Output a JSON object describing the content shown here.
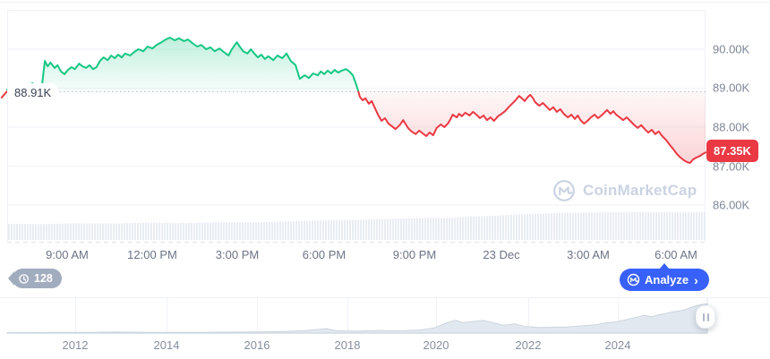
{
  "watermark": {
    "text": "CoinMarketCap"
  },
  "history_badge": {
    "count": "128"
  },
  "analyze_button": {
    "label": "Analyze",
    "chevron": "›",
    "color": "#3861fb"
  },
  "colors": {
    "up_green": "#16c784",
    "down_red": "#ea3943",
    "badge_red": "#ea3943",
    "analyze_blue": "#3861fb",
    "grid": "#eff2f5",
    "axis_text": "#7e8798",
    "navigator_fill": "#e2e8ef"
  },
  "chart_data": {
    "type": "line",
    "title": "",
    "open_price_k": 88.91,
    "last_price_k": 87.35,
    "open_price_label": "88.91K",
    "last_price_label": "87.35K",
    "y_axis": {
      "tick_labels": [
        "90.00K",
        "89.00K",
        "88.00K",
        "87.00K",
        "86.00K"
      ],
      "tick_values_k": [
        90,
        89,
        88,
        87,
        86
      ],
      "range_top_k": 91,
      "grid": "horizontal"
    },
    "x_axis": {
      "tick_labels": [
        "9:00 AM",
        "12:00 PM",
        "3:00 PM",
        "6:00 PM",
        "9:00 PM",
        "23 Dec",
        "3:00 AM",
        "6:00 AM"
      ]
    },
    "series": [
      {
        "name": "pre-open-tick",
        "color": "#ea3943",
        "area": "none",
        "points": [
          [
            -0.008,
            88.76
          ],
          [
            0.0,
            88.92
          ]
        ]
      },
      {
        "name": "price-above-open",
        "color": "#16c784",
        "area": "above",
        "points": [
          [
            0.0,
            88.97
          ],
          [
            0.01,
            88.94
          ],
          [
            0.018,
            89.01
          ],
          [
            0.028,
            88.97
          ],
          [
            0.036,
            89.13
          ],
          [
            0.041,
            89.03
          ],
          [
            0.046,
            88.99
          ],
          [
            0.05,
            89.08
          ],
          [
            0.054,
            89.7
          ],
          [
            0.058,
            89.56
          ],
          [
            0.062,
            89.66
          ],
          [
            0.068,
            89.52
          ],
          [
            0.072,
            89.59
          ],
          [
            0.077,
            89.43
          ],
          [
            0.082,
            89.36
          ],
          [
            0.087,
            89.47
          ],
          [
            0.092,
            89.54
          ],
          [
            0.097,
            89.49
          ],
          [
            0.103,
            89.63
          ],
          [
            0.108,
            89.56
          ],
          [
            0.113,
            89.52
          ],
          [
            0.118,
            89.59
          ],
          [
            0.123,
            89.49
          ],
          [
            0.128,
            89.54
          ],
          [
            0.133,
            89.7
          ],
          [
            0.138,
            89.79
          ],
          [
            0.144,
            89.72
          ],
          [
            0.149,
            89.84
          ],
          [
            0.154,
            89.77
          ],
          [
            0.159,
            89.86
          ],
          [
            0.164,
            89.79
          ],
          [
            0.169,
            89.89
          ],
          [
            0.176,
            89.84
          ],
          [
            0.182,
            89.93
          ],
          [
            0.188,
            90.0
          ],
          [
            0.195,
            89.95
          ],
          [
            0.201,
            90.07
          ],
          [
            0.208,
            90.02
          ],
          [
            0.214,
            90.11
          ],
          [
            0.221,
            90.18
          ],
          [
            0.227,
            90.25
          ],
          [
            0.233,
            90.3
          ],
          [
            0.24,
            90.23
          ],
          [
            0.246,
            90.28
          ],
          [
            0.253,
            90.21
          ],
          [
            0.259,
            90.25
          ],
          [
            0.265,
            90.16
          ],
          [
            0.272,
            90.07
          ],
          [
            0.278,
            90.11
          ],
          [
            0.285,
            90.0
          ],
          [
            0.291,
            90.05
          ],
          [
            0.297,
            89.95
          ],
          [
            0.304,
            90.02
          ],
          [
            0.31,
            89.93
          ],
          [
            0.317,
            89.84
          ],
          [
            0.321,
            89.98
          ],
          [
            0.326,
            90.11
          ],
          [
            0.329,
            90.18
          ],
          [
            0.333,
            90.07
          ],
          [
            0.338,
            89.95
          ],
          [
            0.344,
            89.89
          ],
          [
            0.349,
            90.0
          ],
          [
            0.354,
            89.89
          ],
          [
            0.359,
            89.79
          ],
          [
            0.364,
            89.86
          ],
          [
            0.369,
            89.75
          ],
          [
            0.374,
            89.82
          ],
          [
            0.381,
            89.72
          ],
          [
            0.387,
            89.84
          ],
          [
            0.394,
            89.77
          ],
          [
            0.4,
            89.89
          ],
          [
            0.406,
            89.7
          ],
          [
            0.413,
            89.59
          ],
          [
            0.419,
            89.24
          ],
          [
            0.426,
            89.33
          ],
          [
            0.432,
            89.26
          ],
          [
            0.438,
            89.38
          ],
          [
            0.445,
            89.33
          ],
          [
            0.449,
            89.43
          ],
          [
            0.454,
            89.36
          ],
          [
            0.459,
            89.45
          ],
          [
            0.464,
            89.38
          ],
          [
            0.469,
            89.47
          ],
          [
            0.474,
            89.4
          ],
          [
            0.479,
            89.45
          ],
          [
            0.485,
            89.49
          ],
          [
            0.49,
            89.43
          ],
          [
            0.495,
            89.33
          ],
          [
            0.5,
            89.08
          ],
          [
            0.503,
            88.91
          ]
        ]
      },
      {
        "name": "price-below-open",
        "color": "#ea3943",
        "area": "below",
        "points": [
          [
            0.503,
            88.91
          ],
          [
            0.505,
            88.78
          ],
          [
            0.509,
            88.69
          ],
          [
            0.513,
            88.74
          ],
          [
            0.518,
            88.6
          ],
          [
            0.522,
            88.67
          ],
          [
            0.526,
            88.51
          ],
          [
            0.531,
            88.32
          ],
          [
            0.536,
            88.16
          ],
          [
            0.541,
            88.23
          ],
          [
            0.546,
            88.09
          ],
          [
            0.551,
            88.02
          ],
          [
            0.556,
            87.95
          ],
          [
            0.562,
            88.05
          ],
          [
            0.567,
            88.18
          ],
          [
            0.574,
            87.98
          ],
          [
            0.579,
            87.89
          ],
          [
            0.585,
            87.82
          ],
          [
            0.59,
            87.91
          ],
          [
            0.595,
            87.84
          ],
          [
            0.6,
            87.77
          ],
          [
            0.605,
            87.86
          ],
          [
            0.61,
            87.79
          ],
          [
            0.615,
            87.98
          ],
          [
            0.621,
            88.07
          ],
          [
            0.626,
            88.0
          ],
          [
            0.631,
            88.09
          ],
          [
            0.635,
            88.21
          ],
          [
            0.638,
            88.32
          ],
          [
            0.644,
            88.25
          ],
          [
            0.647,
            88.34
          ],
          [
            0.651,
            88.28
          ],
          [
            0.656,
            88.37
          ],
          [
            0.662,
            88.3
          ],
          [
            0.667,
            88.39
          ],
          [
            0.672,
            88.32
          ],
          [
            0.677,
            88.23
          ],
          [
            0.682,
            88.3
          ],
          [
            0.687,
            88.18
          ],
          [
            0.692,
            88.25
          ],
          [
            0.697,
            88.16
          ],
          [
            0.703,
            88.28
          ],
          [
            0.708,
            88.34
          ],
          [
            0.713,
            88.41
          ],
          [
            0.718,
            88.51
          ],
          [
            0.723,
            88.6
          ],
          [
            0.728,
            88.69
          ],
          [
            0.733,
            88.8
          ],
          [
            0.737,
            88.74
          ],
          [
            0.741,
            88.67
          ],
          [
            0.745,
            88.76
          ],
          [
            0.749,
            88.83
          ],
          [
            0.753,
            88.74
          ],
          [
            0.756,
            88.64
          ],
          [
            0.762,
            88.55
          ],
          [
            0.767,
            88.62
          ],
          [
            0.772,
            88.53
          ],
          [
            0.777,
            88.44
          ],
          [
            0.782,
            88.51
          ],
          [
            0.787,
            88.39
          ],
          [
            0.792,
            88.46
          ],
          [
            0.797,
            88.34
          ],
          [
            0.803,
            88.25
          ],
          [
            0.808,
            88.32
          ],
          [
            0.813,
            88.21
          ],
          [
            0.817,
            88.3
          ],
          [
            0.821,
            88.18
          ],
          [
            0.826,
            88.09
          ],
          [
            0.831,
            88.16
          ],
          [
            0.836,
            88.25
          ],
          [
            0.841,
            88.32
          ],
          [
            0.846,
            88.23
          ],
          [
            0.851,
            88.3
          ],
          [
            0.855,
            88.37
          ],
          [
            0.859,
            88.44
          ],
          [
            0.864,
            88.34
          ],
          [
            0.868,
            88.41
          ],
          [
            0.872,
            88.32
          ],
          [
            0.877,
            88.25
          ],
          [
            0.882,
            88.18
          ],
          [
            0.887,
            88.25
          ],
          [
            0.892,
            88.16
          ],
          [
            0.897,
            88.07
          ],
          [
            0.903,
            87.98
          ],
          [
            0.908,
            88.05
          ],
          [
            0.913,
            87.95
          ],
          [
            0.918,
            87.86
          ],
          [
            0.923,
            87.93
          ],
          [
            0.928,
            87.82
          ],
          [
            0.933,
            87.89
          ],
          [
            0.938,
            87.77
          ],
          [
            0.944,
            87.66
          ],
          [
            0.949,
            87.54
          ],
          [
            0.954,
            87.43
          ],
          [
            0.959,
            87.31
          ],
          [
            0.964,
            87.22
          ],
          [
            0.969,
            87.15
          ],
          [
            0.974,
            87.1
          ],
          [
            0.978,
            87.08
          ],
          [
            0.982,
            87.17
          ],
          [
            0.987,
            87.22
          ],
          [
            0.992,
            87.26
          ],
          [
            0.996,
            87.31
          ],
          [
            1.0,
            87.35
          ]
        ]
      }
    ],
    "volume_profile": [
      [
        0,
        0.58
      ],
      [
        0.05,
        0.57
      ],
      [
        0.1,
        0.6
      ],
      [
        0.15,
        0.59
      ],
      [
        0.2,
        0.62
      ],
      [
        0.25,
        0.61
      ],
      [
        0.3,
        0.64
      ],
      [
        0.35,
        0.63
      ],
      [
        0.4,
        0.66
      ],
      [
        0.45,
        0.7
      ],
      [
        0.5,
        0.73
      ],
      [
        0.55,
        0.76
      ],
      [
        0.6,
        0.8
      ],
      [
        0.63,
        0.79
      ],
      [
        0.66,
        0.84
      ],
      [
        0.7,
        0.88
      ],
      [
        0.73,
        0.92
      ],
      [
        0.76,
        0.95
      ],
      [
        0.8,
        0.97
      ],
      [
        0.85,
        0.99
      ],
      [
        0.9,
        1.0
      ],
      [
        1,
        1.0
      ]
    ],
    "navigator": {
      "x_tick_labels": [
        "2012",
        "2014",
        "2016",
        "2018",
        "2020",
        "2022",
        "2024"
      ],
      "points": [
        [
          0,
          0.01
        ],
        [
          0.03,
          0.012
        ],
        [
          0.06,
          0.018
        ],
        [
          0.09,
          0.022
        ],
        [
          0.12,
          0.018
        ],
        [
          0.15,
          0.03
        ],
        [
          0.17,
          0.026
        ],
        [
          0.2,
          0.022
        ],
        [
          0.24,
          0.02
        ],
        [
          0.28,
          0.022
        ],
        [
          0.32,
          0.028
        ],
        [
          0.36,
          0.035
        ],
        [
          0.4,
          0.05
        ],
        [
          0.43,
          0.08
        ],
        [
          0.455,
          0.13
        ],
        [
          0.47,
          0.07
        ],
        [
          0.5,
          0.055
        ],
        [
          0.53,
          0.075
        ],
        [
          0.56,
          0.065
        ],
        [
          0.59,
          0.09
        ],
        [
          0.61,
          0.15
        ],
        [
          0.625,
          0.28
        ],
        [
          0.64,
          0.38
        ],
        [
          0.65,
          0.31
        ],
        [
          0.665,
          0.34
        ],
        [
          0.68,
          0.37
        ],
        [
          0.695,
          0.3
        ],
        [
          0.71,
          0.23
        ],
        [
          0.725,
          0.27
        ],
        [
          0.74,
          0.19
        ],
        [
          0.76,
          0.165
        ],
        [
          0.78,
          0.17
        ],
        [
          0.8,
          0.18
        ],
        [
          0.82,
          0.21
        ],
        [
          0.84,
          0.24
        ],
        [
          0.855,
          0.3
        ],
        [
          0.87,
          0.33
        ],
        [
          0.885,
          0.4
        ],
        [
          0.9,
          0.47
        ],
        [
          0.91,
          0.52
        ],
        [
          0.92,
          0.48
        ],
        [
          0.93,
          0.53
        ],
        [
          0.94,
          0.57
        ],
        [
          0.95,
          0.62
        ],
        [
          0.96,
          0.65
        ],
        [
          0.97,
          0.7
        ],
        [
          0.98,
          0.78
        ],
        [
          0.99,
          0.83
        ],
        [
          1,
          0.86
        ]
      ]
    }
  }
}
